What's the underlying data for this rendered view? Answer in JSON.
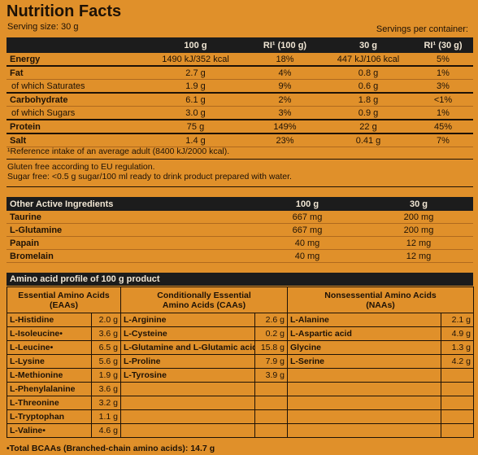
{
  "title": "Nutrition Facts",
  "serving_size": "Serving size: 30 g",
  "servings_per_container": "Servings per container:",
  "nutrition_table": {
    "headers": [
      "",
      "100 g",
      "RI¹ (100 g)",
      "30 g",
      "RI¹ (30 g)"
    ],
    "rows": [
      {
        "label": "Energy",
        "bold": true,
        "v100": "1490 kJ/352 kcal",
        "ri100": "18%",
        "v30": "447 kJ/106 kcal",
        "ri30": "5%"
      },
      {
        "label": "Fat",
        "bold": true,
        "v100": "2.7 g",
        "ri100": "4%",
        "v30": "0.8 g",
        "ri30": "1%"
      },
      {
        "label": "of which Saturates",
        "bold": false,
        "v100": "1.9 g",
        "ri100": "9%",
        "v30": "0.6 g",
        "ri30": "3%"
      },
      {
        "label": "Carbohydrate",
        "bold": true,
        "v100": "6.1 g",
        "ri100": "2%",
        "v30": "1.8 g",
        "ri30": "<1%"
      },
      {
        "label": "of which Sugars",
        "bold": false,
        "v100": "3.0 g",
        "ri100": "3%",
        "v30": "0.9 g",
        "ri30": "1%"
      },
      {
        "label": "Protein",
        "bold": true,
        "v100": "75 g",
        "ri100": "149%",
        "v30": "22 g",
        "ri30": "45%"
      },
      {
        "label": "Salt",
        "bold": true,
        "v100": "1.4 g",
        "ri100": "23%",
        "v30": "0.41 g",
        "ri30": "7%"
      }
    ]
  },
  "ri_note": "¹Reference intake of an average adult (8400 kJ/2000 kcal).",
  "gluten_note": "Gluten free according to EU regulation.",
  "sugar_note": "Sugar free: <0.5 g sugar/100 ml ready to drink product prepared with water.",
  "active_table": {
    "headers": [
      "Other Active Ingredients",
      "100 g",
      "30 g"
    ],
    "rows": [
      {
        "label": "Taurine",
        "v100": "667 mg",
        "v30": "200 mg"
      },
      {
        "label": "L-Glutamine",
        "v100": "667 mg",
        "v30": "200 mg"
      },
      {
        "label": "Papain",
        "v100": "40 mg",
        "v30": "12 mg"
      },
      {
        "label": "Bromelain",
        "v100": "40 mg",
        "v30": "12 mg"
      }
    ]
  },
  "amino_title": "Amino acid profile of 100 g product",
  "amino_headers": [
    "Essential Amino Acids\n(EAAs)",
    "Conditionally Essential\nAmino Acids (CAAs)",
    "Nonsessential Amino Acids\n(NAAs)"
  ],
  "eaa": [
    {
      "name": "L-Histidine",
      "value": "2.0 g"
    },
    {
      "name": "L-Isoleucine•",
      "value": "3.6 g"
    },
    {
      "name": "L-Leucine•",
      "value": "6.5 g"
    },
    {
      "name": "L-Lysine",
      "value": "5.6 g"
    },
    {
      "name": "L-Methionine",
      "value": "1.9 g"
    },
    {
      "name": "L-Phenylalanine",
      "value": "3.6 g"
    },
    {
      "name": "L-Threonine",
      "value": "3.2 g"
    },
    {
      "name": "L-Tryptophan",
      "value": "1.1 g"
    },
    {
      "name": "L-Valine•",
      "value": "4.6 g"
    }
  ],
  "caa": [
    {
      "name": "L-Arginine",
      "value": "2.6 g"
    },
    {
      "name": "L-Cysteine",
      "value": "0.2 g"
    },
    {
      "name": "L-Glutamine and L-Glutamic acid",
      "value": "15.8 g"
    },
    {
      "name": "L-Proline",
      "value": "7.9 g"
    },
    {
      "name": "L-Tyrosine",
      "value": "3.9 g"
    }
  ],
  "naa": [
    {
      "name": "L-Alanine",
      "value": "2.1 g"
    },
    {
      "name": "L-Aspartic acid",
      "value": "4.9 g"
    },
    {
      "name": "Glycine",
      "value": "1.3 g"
    },
    {
      "name": "L-Serine",
      "value": "4.2 g"
    }
  ],
  "total_bcaa": "•Total BCAAs (Branched-chain amino acids): 14.7 g",
  "colors": {
    "background": "#e0902a",
    "header_bg": "#1c1c1c",
    "header_text": "#f0e6d4",
    "text": "#1e1206"
  }
}
